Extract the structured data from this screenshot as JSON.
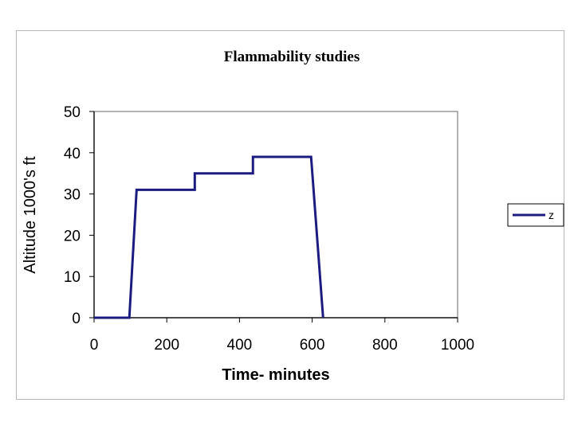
{
  "chart_data": {
    "type": "line",
    "title": "Flammability studies",
    "xlabel": "Time- minutes",
    "ylabel": "Altitude 1000's ft",
    "xlim": [
      0,
      1000
    ],
    "ylim": [
      0,
      50
    ],
    "xticks": [
      0,
      200,
      400,
      600,
      800,
      1000
    ],
    "yticks": [
      0,
      10,
      20,
      30,
      40,
      50
    ],
    "grid": false,
    "legend": "right",
    "series": [
      {
        "name": "z",
        "color": "#1c1c80",
        "x": [
          0,
          97,
          117,
          277,
          277,
          437,
          437,
          597,
          630
        ],
        "y": [
          0,
          0,
          31,
          31,
          35,
          35,
          39,
          39,
          0
        ]
      }
    ]
  }
}
